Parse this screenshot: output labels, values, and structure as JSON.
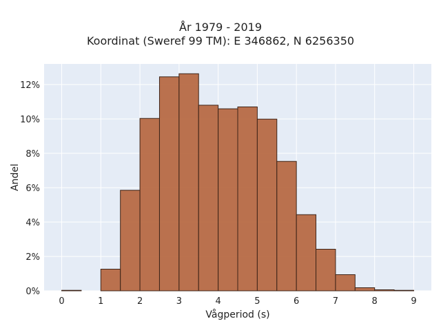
{
  "chart_data": {
    "type": "bar",
    "title": "År 1979 - 2019",
    "subtitle": "Koordinat (Sweref 99 TM): E 346862, N 6256350",
    "xlabel": "Vågperiod (s)",
    "ylabel": "Andel",
    "bin_width": 0.5,
    "bins": [
      {
        "x0": 0.0,
        "x1": 0.5,
        "value": 0.0003
      },
      {
        "x0": 1.0,
        "x1": 1.5,
        "value": 0.0126
      },
      {
        "x0": 1.5,
        "x1": 2.0,
        "value": 0.0585
      },
      {
        "x0": 2.0,
        "x1": 2.5,
        "value": 0.1003
      },
      {
        "x0": 2.5,
        "x1": 3.0,
        "value": 0.1245
      },
      {
        "x0": 3.0,
        "x1": 3.5,
        "value": 0.1263
      },
      {
        "x0": 3.5,
        "x1": 4.0,
        "value": 0.108
      },
      {
        "x0": 4.0,
        "x1": 4.5,
        "value": 0.1059
      },
      {
        "x0": 4.5,
        "x1": 5.0,
        "value": 0.107
      },
      {
        "x0": 5.0,
        "x1": 5.5,
        "value": 0.0999
      },
      {
        "x0": 5.5,
        "x1": 6.0,
        "value": 0.0753
      },
      {
        "x0": 6.0,
        "x1": 6.5,
        "value": 0.0443
      },
      {
        "x0": 6.5,
        "x1": 7.0,
        "value": 0.0242
      },
      {
        "x0": 7.0,
        "x1": 7.5,
        "value": 0.0094
      },
      {
        "x0": 7.5,
        "x1": 8.0,
        "value": 0.0018
      },
      {
        "x0": 8.0,
        "x1": 8.5,
        "value": 0.0006
      },
      {
        "x0": 8.5,
        "x1": 9.0,
        "value": 0.0003
      }
    ],
    "xlim": [
      -0.45,
      9.45
    ],
    "ylim": [
      0,
      0.132
    ],
    "xticks": [
      0,
      1,
      2,
      3,
      4,
      5,
      6,
      7,
      8,
      9
    ],
    "yticks": [
      0,
      0.02,
      0.04,
      0.06,
      0.08,
      0.1,
      0.12
    ],
    "ytick_labels": [
      "0%",
      "2%",
      "4%",
      "6%",
      "8%",
      "10%",
      "12%"
    ],
    "grid": true,
    "colors": {
      "bar_fill": "#b5643c",
      "bar_stroke": "#3d2418",
      "plot_bg": "#e5ecf6",
      "grid": "#ffffff"
    }
  }
}
